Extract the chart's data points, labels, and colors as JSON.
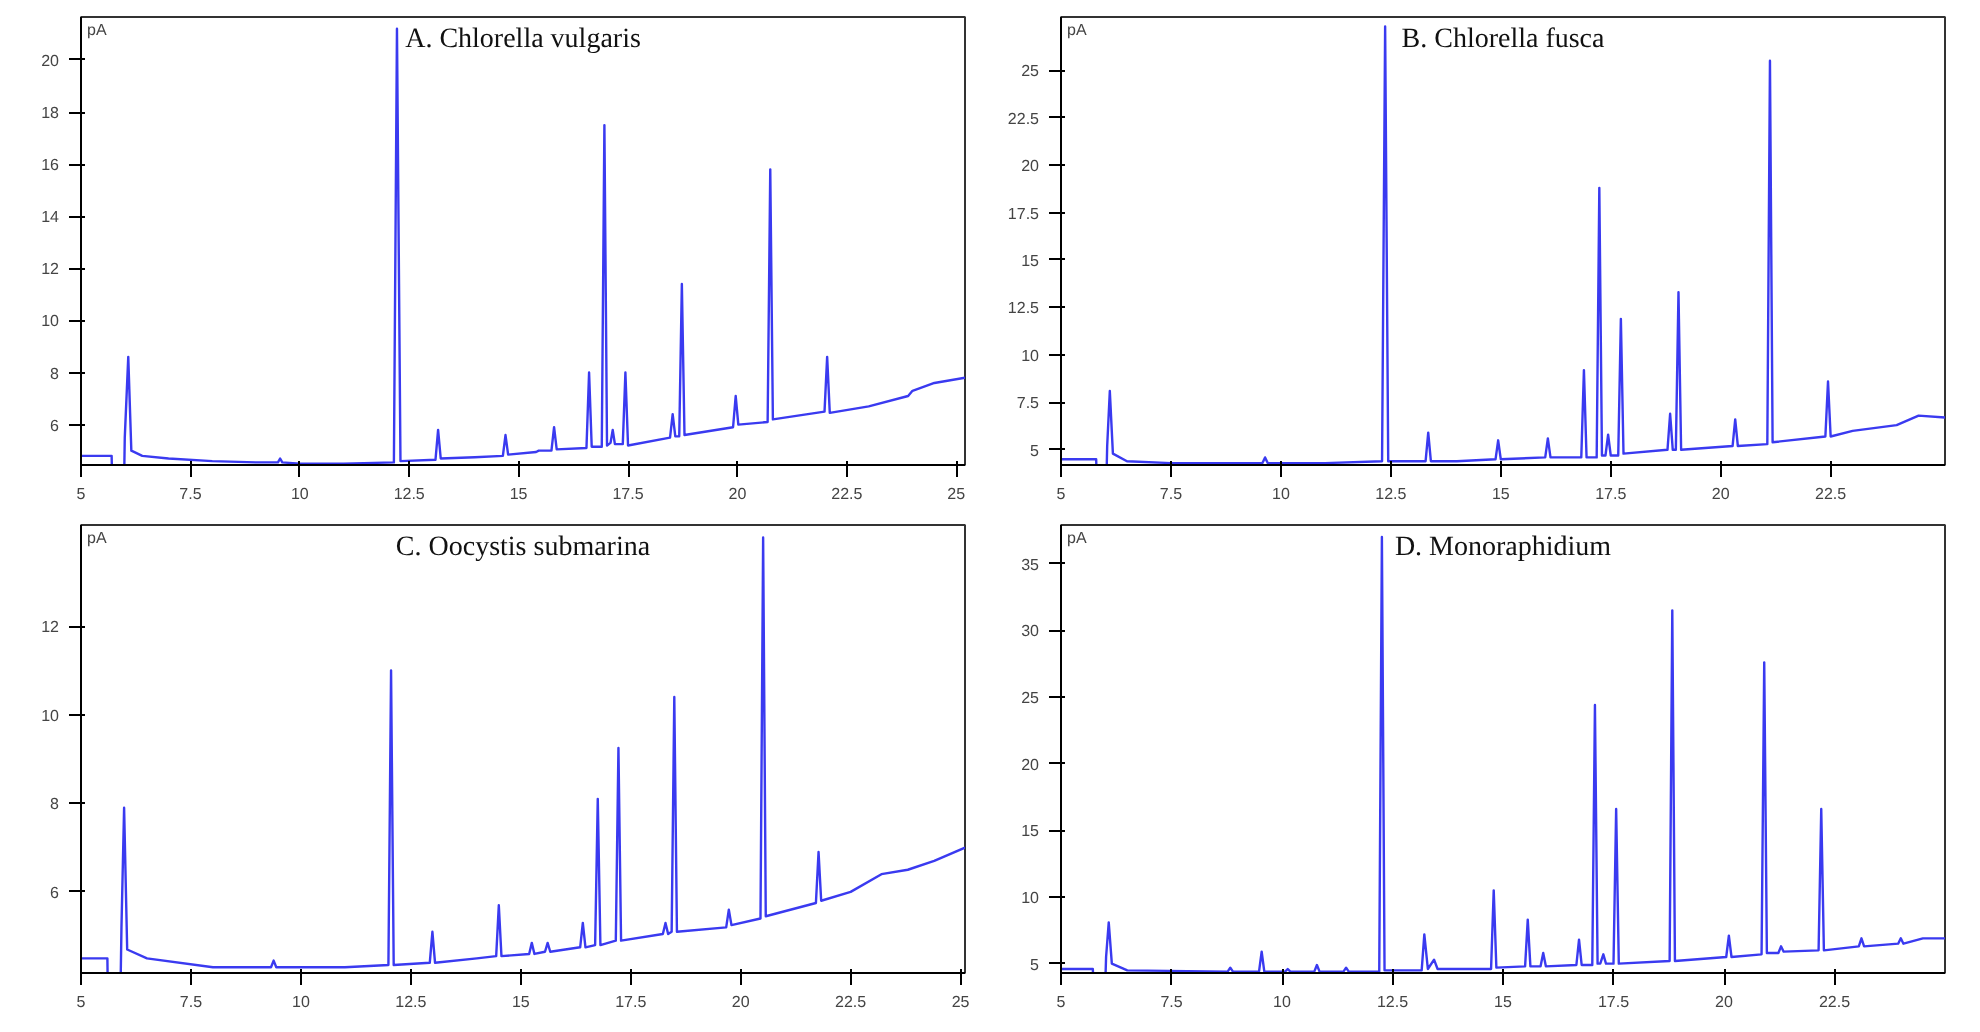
{
  "chart_data": [
    {
      "type": "line",
      "title": "A. Chlorella vulgaris",
      "ylabel": "pA",
      "xlim": [
        5,
        25.2
      ],
      "ylim": [
        4.45,
        21.65
      ],
      "xticks": [
        5,
        7.5,
        10,
        12.5,
        15,
        17.5,
        20,
        22.5,
        25
      ],
      "yticks": [
        6,
        8,
        10,
        12,
        14,
        16,
        18,
        20
      ],
      "grid": false,
      "series": [
        {
          "color": "#3a3af0",
          "x": [
            5,
            5.7,
            5.76,
            5.85,
            5.95,
            6.0,
            6.08,
            6.15,
            6.4,
            7,
            8,
            9,
            9.5,
            9.55,
            9.6,
            10,
            11,
            12.15,
            12.22,
            12.3,
            13.1,
            13.16,
            13.22,
            14,
            14.64,
            14.7,
            14.76,
            15.4,
            15.46,
            15.52,
            15.75,
            15.81,
            15.87,
            16.55,
            16.61,
            16.67,
            16.9,
            16.96,
            17.02,
            17.1,
            17.15,
            17.2,
            17.38,
            17.44,
            17.5,
            18.46,
            18.52,
            18.58,
            18.67,
            18.73,
            18.79,
            19.9,
            19.96,
            20.02,
            20.69,
            20.75,
            20.81,
            21.99,
            22.05,
            22.11,
            23,
            23.9,
            24,
            24.5,
            25.2
          ],
          "values": [
            4.8,
            4.8,
            null,
            null,
            null,
            5.5,
            8.6,
            5.0,
            4.8,
            4.7,
            4.6,
            4.55,
            4.55,
            4.7,
            4.55,
            4.5,
            4.5,
            4.55,
            21.2,
            4.6,
            4.65,
            5.8,
            4.7,
            4.75,
            4.8,
            5.6,
            4.85,
            4.95,
            5.0,
            5.0,
            5.0,
            5.9,
            5.05,
            5.1,
            8.0,
            5.15,
            5.15,
            17.5,
            5.2,
            5.3,
            5.8,
            5.25,
            5.25,
            8.0,
            5.2,
            5.5,
            6.4,
            5.55,
            5.55,
            11.4,
            5.6,
            5.9,
            7.1,
            6.0,
            6.1,
            15.8,
            6.2,
            6.5,
            8.6,
            6.45,
            6.7,
            7.1,
            7.3,
            7.6,
            7.8
          ]
        }
      ]
    },
    {
      "type": "line",
      "title": "B. Chlorella fusca",
      "ylabel": "pA",
      "xlim": [
        5,
        25.1
      ],
      "ylim": [
        4.2,
        27.8
      ],
      "xticks": [
        5,
        7.5,
        10,
        12.5,
        15,
        17.5,
        20,
        22.5
      ],
      "yticks": [
        5,
        7.5,
        10,
        12.5,
        15,
        17.5,
        20,
        22.5,
        25
      ],
      "grid": false,
      "series": [
        {
          "color": "#3a3af0",
          "x": [
            5,
            5.8,
            5.85,
            5.92,
            6.0,
            6.05,
            6.11,
            6.18,
            6.5,
            7.5,
            9.58,
            9.64,
            9.7,
            11,
            12.3,
            12.37,
            12.44,
            13.29,
            13.35,
            13.41,
            14,
            14.88,
            14.94,
            15,
            16.01,
            16.07,
            16.13,
            16.83,
            16.89,
            16.95,
            17.18,
            17.24,
            17.3,
            17.38,
            17.44,
            17.5,
            17.67,
            17.73,
            17.79,
            18.79,
            18.85,
            18.91,
            18.98,
            19.04,
            19.1,
            20.27,
            20.33,
            20.39,
            21.06,
            21.12,
            21.18,
            22.38,
            22.44,
            22.5,
            23,
            24,
            24.5,
            25.1
          ],
          "values": [
            4.5,
            4.5,
            null,
            null,
            null,
            5.2,
            8.1,
            4.8,
            4.4,
            4.3,
            4.3,
            4.6,
            4.3,
            4.3,
            4.4,
            27.3,
            4.4,
            4.4,
            5.9,
            4.4,
            4.4,
            4.5,
            5.5,
            4.5,
            4.6,
            5.6,
            4.6,
            4.6,
            9.2,
            4.6,
            4.6,
            18.8,
            4.7,
            4.7,
            5.8,
            4.7,
            4.7,
            11.9,
            4.8,
            5.0,
            6.9,
            5.0,
            5.0,
            13.3,
            5.0,
            5.2,
            6.6,
            5.2,
            5.3,
            25.5,
            5.4,
            5.7,
            8.6,
            5.7,
            6.0,
            6.3,
            6.8,
            6.7
          ]
        }
      ]
    },
    {
      "type": "line",
      "title": "C. Oocystis submarina",
      "ylabel": "pA",
      "xlim": [
        5,
        25.1
      ],
      "ylim": [
        4.17,
        14.28
      ],
      "xticks": [
        5,
        7.5,
        10,
        12.5,
        15,
        17.5,
        20,
        22.5,
        25
      ],
      "yticks": [
        6,
        8,
        10,
        12
      ],
      "grid": false,
      "series": [
        {
          "color": "#3a3af0",
          "x": [
            5,
            5.6,
            5.66,
            5.75,
            5.84,
            5.92,
            5.98,
            6.05,
            6.5,
            8,
            9.32,
            9.38,
            9.44,
            11,
            11.99,
            12.05,
            12.11,
            12.93,
            12.99,
            13.05,
            14,
            14.44,
            14.5,
            14.56,
            15.19,
            15.25,
            15.31,
            15.55,
            15.61,
            15.67,
            16.35,
            16.41,
            16.47,
            16.69,
            16.75,
            16.81,
            17.16,
            17.22,
            17.28,
            18.23,
            18.29,
            18.35,
            18.43,
            18.49,
            18.55,
            19.67,
            19.73,
            19.79,
            20.45,
            20.51,
            20.57,
            21.71,
            21.77,
            21.83,
            22.5,
            23.2,
            23.8,
            24.4,
            25.1
          ],
          "values": [
            4.5,
            4.5,
            null,
            null,
            null,
            5.2,
            7.9,
            4.7,
            4.5,
            4.3,
            4.3,
            4.45,
            4.3,
            4.3,
            4.35,
            11.0,
            4.35,
            4.4,
            5.1,
            4.4,
            4.5,
            4.55,
            5.7,
            4.55,
            4.6,
            4.85,
            4.6,
            4.65,
            4.85,
            4.65,
            4.75,
            5.3,
            4.75,
            4.8,
            8.1,
            4.8,
            4.9,
            9.25,
            4.9,
            5.05,
            5.3,
            5.05,
            5.1,
            10.4,
            5.1,
            5.2,
            5.6,
            5.25,
            5.4,
            14.0,
            5.45,
            5.75,
            6.9,
            5.8,
            6.0,
            6.4,
            6.5,
            6.7,
            7.0
          ]
        }
      ]
    },
    {
      "type": "line",
      "title": "D. Monoraphidium",
      "ylabel": "pA",
      "xlim": [
        5,
        25.0
      ],
      "ylim": [
        4.3,
        37.9
      ],
      "xticks": [
        5,
        7.5,
        10,
        12.5,
        15,
        17.5,
        20,
        22.5
      ],
      "yticks": [
        5,
        10,
        15,
        20,
        25,
        30,
        35
      ],
      "grid": false,
      "series": [
        {
          "color": "#3a3af0",
          "x": [
            5,
            5.72,
            5.78,
            5.88,
            5.97,
            6.02,
            6.08,
            6.15,
            6.5,
            8.77,
            8.83,
            8.89,
            9.48,
            9.54,
            9.6,
            10.07,
            10.13,
            10.19,
            10.73,
            10.79,
            10.85,
            11.39,
            11.45,
            11.51,
            12.2,
            12.26,
            12.32,
            13.16,
            13.22,
            13.3,
            13.44,
            13.52,
            14.73,
            14.79,
            14.85,
            15.5,
            15.56,
            15.62,
            15.85,
            15.91,
            15.97,
            16.66,
            16.72,
            16.78,
            17.02,
            17.08,
            17.14,
            17.2,
            17.27,
            17.33,
            17.5,
            17.56,
            17.62,
            18.77,
            18.83,
            18.89,
            20.05,
            20.11,
            20.17,
            20.85,
            20.91,
            20.97,
            21.23,
            21.29,
            21.35,
            22.14,
            22.2,
            22.26,
            23.05,
            23.11,
            23.17,
            23.94,
            24.0,
            24.06,
            24.5,
            25.0
          ],
          "values": [
            4.6,
            4.6,
            null,
            null,
            null,
            5.5,
            8.1,
            5.0,
            4.5,
            4.4,
            4.7,
            4.4,
            4.4,
            5.9,
            4.4,
            4.4,
            4.6,
            4.4,
            4.4,
            4.9,
            4.4,
            4.4,
            4.7,
            4.4,
            4.4,
            37.0,
            4.5,
            4.5,
            7.2,
            4.6,
            5.3,
            4.6,
            4.6,
            10.5,
            4.7,
            4.8,
            8.3,
            4.8,
            4.8,
            5.8,
            4.8,
            4.9,
            6.8,
            4.9,
            4.9,
            24.4,
            5.0,
            5.0,
            5.7,
            5.0,
            5.0,
            16.6,
            5.0,
            5.2,
            31.5,
            5.2,
            5.5,
            7.1,
            5.5,
            5.7,
            27.6,
            5.8,
            5.8,
            6.3,
            5.9,
            6.0,
            16.6,
            6.0,
            6.3,
            6.9,
            6.3,
            6.5,
            6.9,
            6.5,
            6.9,
            6.9
          ]
        }
      ]
    }
  ]
}
